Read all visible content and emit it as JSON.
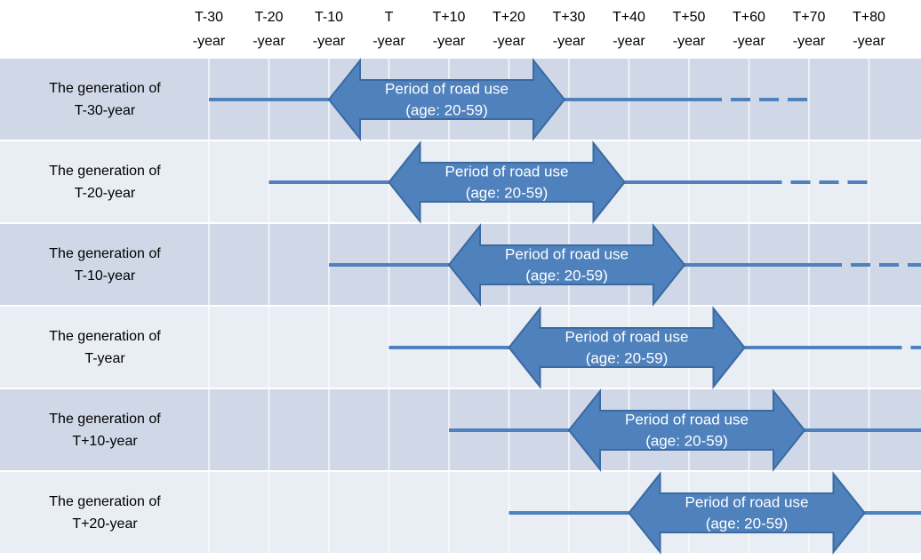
{
  "columns": [
    {
      "line1": "T-30",
      "line2": "-year"
    },
    {
      "line1": "T-20",
      "line2": "-year"
    },
    {
      "line1": "T-10",
      "line2": "-year"
    },
    {
      "line1": "T",
      "line2": "-year"
    },
    {
      "line1": "T+10",
      "line2": "-year"
    },
    {
      "line1": "T+20",
      "line2": "-year"
    },
    {
      "line1": "T+30",
      "line2": "-year"
    },
    {
      "line1": "T+40",
      "line2": "-year"
    },
    {
      "line1": "T+50",
      "line2": "-year"
    },
    {
      "line1": "T+60",
      "line2": "-year"
    },
    {
      "line1": "T+70",
      "line2": "-year"
    },
    {
      "line1": "T+80",
      "line2": "-year"
    }
  ],
  "rows": [
    {
      "label": [
        "The generation of",
        "T-30-year"
      ],
      "arrow": [
        "Period of road use",
        "(age: 20-59)"
      ]
    },
    {
      "label": [
        "The generation of",
        "T-20-year"
      ],
      "arrow": [
        "Period of road use",
        "(age: 20-59)"
      ]
    },
    {
      "label": [
        "The generation of",
        "T-10-year"
      ],
      "arrow": [
        "Period of road use",
        "(age: 20-59)"
      ]
    },
    {
      "label": [
        "The generation of",
        "T-year"
      ],
      "arrow": [
        "Period of road use",
        "(age: 20-59)"
      ]
    },
    {
      "label": [
        "The generation of",
        "T+10-year"
      ],
      "arrow": [
        "Period of road use",
        "(age: 20-59)"
      ]
    },
    {
      "label": [
        "The generation of",
        "T+20-year"
      ],
      "arrow": [
        "Period of road use",
        "(age: 20-59)"
      ]
    }
  ]
}
